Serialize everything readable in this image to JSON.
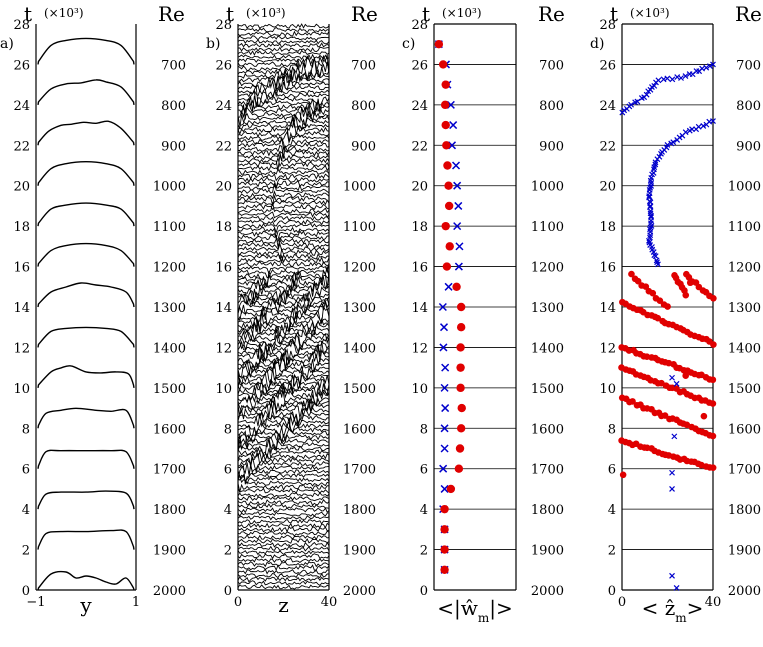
{
  "chart_data": [
    {
      "type": "line",
      "panel_label": "a)",
      "time_label": "t",
      "time_multiplier": "(×10³)",
      "re_label": "Re",
      "xlabel": "y",
      "x_ticks": [
        "−1",
        "1"
      ],
      "xlim": [
        -1,
        1
      ],
      "ylim": [
        0,
        28
      ],
      "y_ticks": [
        0,
        2,
        4,
        6,
        8,
        10,
        12,
        14,
        16,
        18,
        20,
        22,
        24,
        26,
        28
      ],
      "note": "",
      "series": [
        {
          "t": 0,
          "y": [
            -0.95,
            -0.7,
            -0.4,
            -0.2,
            0.0,
            0.2,
            0.4,
            0.6,
            0.8,
            0.95
          ],
          "v": [
            0.1,
            0.8,
            0.9,
            0.6,
            0.7,
            0.6,
            0.4,
            0.3,
            0.6,
            0.1
          ]
        },
        {
          "t": 2,
          "y": [
            -0.95,
            -0.8,
            -0.5,
            0.0,
            0.5,
            0.8,
            0.95
          ],
          "v": [
            0.15,
            0.8,
            0.9,
            0.9,
            0.95,
            0.9,
            0.15
          ]
        },
        {
          "t": 4,
          "y": [
            -0.95,
            -0.8,
            -0.5,
            0.0,
            0.4,
            0.8,
            0.95
          ],
          "v": [
            0.15,
            0.75,
            0.85,
            0.85,
            0.9,
            0.8,
            0.15
          ]
        },
        {
          "t": 6,
          "y": [
            -0.95,
            -0.8,
            -0.5,
            0.0,
            0.5,
            0.8,
            0.95
          ],
          "v": [
            0.15,
            0.85,
            0.9,
            0.9,
            0.9,
            0.85,
            0.15
          ]
        },
        {
          "t": 8,
          "y": [
            -0.95,
            -0.8,
            -0.5,
            -0.2,
            0.2,
            0.5,
            0.8,
            0.95
          ],
          "v": [
            0.15,
            0.75,
            0.9,
            1.0,
            0.9,
            0.85,
            0.9,
            0.15
          ]
        },
        {
          "t": 10,
          "y": [
            -0.95,
            -0.7,
            -0.5,
            -0.3,
            0.0,
            0.3,
            0.6,
            0.85,
            0.95
          ],
          "v": [
            0.15,
            0.8,
            1.0,
            1.1,
            0.8,
            0.75,
            0.8,
            0.7,
            0.15
          ]
        },
        {
          "t": 12,
          "y": [
            -0.95,
            -0.7,
            -0.4,
            0.0,
            0.4,
            0.7,
            0.95
          ],
          "v": [
            0.15,
            0.8,
            0.95,
            1.0,
            0.95,
            0.8,
            0.15
          ]
        },
        {
          "t": 14,
          "y": [
            -0.95,
            -0.7,
            -0.4,
            -0.1,
            0.2,
            0.5,
            0.8,
            0.95
          ],
          "v": [
            0.15,
            0.75,
            1.0,
            1.2,
            1.1,
            1.0,
            0.75,
            0.15
          ]
        },
        {
          "t": 16,
          "y": [
            -0.95,
            -0.7,
            -0.4,
            0.0,
            0.4,
            0.7,
            0.95
          ],
          "v": [
            0.15,
            0.8,
            1.05,
            1.15,
            1.05,
            0.8,
            0.15
          ]
        },
        {
          "t": 18,
          "y": [
            -0.95,
            -0.7,
            -0.4,
            0.0,
            0.4,
            0.7,
            0.95
          ],
          "v": [
            0.15,
            0.85,
            1.05,
            1.15,
            1.05,
            0.85,
            0.15
          ]
        },
        {
          "t": 20,
          "y": [
            -0.95,
            -0.7,
            -0.4,
            0.0,
            0.4,
            0.7,
            0.95
          ],
          "v": [
            0.15,
            0.85,
            1.1,
            1.2,
            1.1,
            0.85,
            0.15
          ]
        },
        {
          "t": 22,
          "y": [
            -0.95,
            -0.75,
            -0.5,
            -0.3,
            -0.05,
            0.2,
            0.45,
            0.7,
            0.95
          ],
          "v": [
            0.15,
            0.7,
            1.0,
            1.05,
            1.15,
            1.1,
            1.2,
            0.85,
            0.15
          ]
        },
        {
          "t": 24,
          "y": [
            -0.95,
            -0.7,
            -0.4,
            -0.1,
            0.2,
            0.4,
            0.7,
            0.95
          ],
          "v": [
            0.15,
            0.8,
            1.05,
            1.1,
            1.25,
            1.15,
            0.9,
            0.15
          ]
        },
        {
          "t": 26,
          "y": [
            -0.95,
            -0.7,
            -0.4,
            0.0,
            0.4,
            0.7,
            0.95
          ],
          "v": [
            0.15,
            0.95,
            1.2,
            1.3,
            1.2,
            0.95,
            0.15
          ]
        }
      ]
    },
    {
      "type": "heatmap",
      "panel_label": "b)",
      "time_label": "t",
      "time_multiplier": "(×10³)",
      "re_label": "Re",
      "xlabel": "z",
      "x_ticks": [
        "0",
        "40"
      ],
      "xlim": [
        0,
        40
      ],
      "ylim": [
        0,
        28
      ],
      "y_ticks": [
        0,
        2,
        4,
        6,
        8,
        10,
        12,
        14,
        16,
        18,
        20,
        22,
        24,
        26,
        28
      ],
      "stripes": [
        {
          "points": [
            [
              0,
              5.4
            ],
            [
              40,
              10.3
            ]
          ]
        },
        {
          "points": [
            [
              0,
              7.0
            ],
            [
              40,
              12.3
            ]
          ]
        },
        {
          "points": [
            [
              0,
              8.6
            ],
            [
              40,
              14.0
            ]
          ]
        },
        {
          "points": [
            [
              0,
              10.3
            ],
            [
              40,
              15.6
            ]
          ]
        },
        {
          "points": [
            [
              0,
              12.0
            ],
            [
              28,
              15.6
            ]
          ]
        },
        {
          "points": [
            [
              0,
              13.8
            ],
            [
              14,
              15.6
            ]
          ]
        },
        {
          "points": [
            [
              20,
              16.0
            ],
            [
              15,
              19.0
            ],
            [
              18,
              21.5
            ],
            [
              26,
              23.2
            ],
            [
              38,
              24.1
            ]
          ]
        },
        {
          "points": [
            [
              0,
              23.0
            ],
            [
              8,
              24.4
            ],
            [
              20,
              25.2
            ],
            [
              30,
              25.8
            ],
            [
              40,
              26.0
            ]
          ]
        }
      ]
    },
    {
      "type": "scatter",
      "panel_label": "c)",
      "time_label": "t",
      "time_multiplier": "(×10³)",
      "re_label": "Re",
      "xlabel": "<|ŵ_m|>",
      "xlim": [
        0,
        1
      ],
      "ylim": [
        0,
        28
      ],
      "y_ticks": [
        0,
        2,
        4,
        6,
        8,
        10,
        12,
        14,
        16,
        18,
        20,
        22,
        24,
        26,
        28
      ],
      "series": [
        {
          "marker": "dot",
          "color": "#e00000",
          "t": [
            1,
            2,
            3,
            4,
            5,
            6,
            7,
            8,
            9,
            10,
            11,
            12,
            13,
            14,
            15,
            16,
            17,
            18,
            19,
            20,
            21,
            22,
            23,
            24,
            25,
            26,
            27
          ],
          "v": [
            0.3,
            0.3,
            0.3,
            0.3,
            0.52,
            0.8,
            0.84,
            0.88,
            0.9,
            0.86,
            0.86,
            0.86,
            0.88,
            0.88,
            0.72,
            0.38,
            0.48,
            0.34,
            0.46,
            0.44,
            0.4,
            0.36,
            0.34,
            0.32,
            0.34,
            0.25,
            0.1
          ]
        },
        {
          "marker": "x",
          "color": "#0000cc",
          "t": [
            1,
            2,
            3,
            4,
            5,
            6,
            7,
            8,
            9,
            10,
            11,
            12,
            13,
            14,
            15,
            16,
            17,
            18,
            19,
            20,
            21,
            22,
            23,
            24,
            25,
            26,
            27
          ],
          "v": [
            0.3,
            0.3,
            0.3,
            0.25,
            0.3,
            0.25,
            0.3,
            0.3,
            0.32,
            0.3,
            0.32,
            0.26,
            0.28,
            0.24,
            0.44,
            0.8,
            0.82,
            0.74,
            0.78,
            0.74,
            0.7,
            0.56,
            0.6,
            0.52,
            0.4,
            0.35,
            0.1
          ]
        }
      ]
    },
    {
      "type": "scatter",
      "panel_label": "d)",
      "time_label": "t",
      "time_multiplier": "(×10³)",
      "re_label": "Re",
      "xlabel": "<ẑ_m>",
      "x_ticks": [
        "0",
        "40"
      ],
      "xlim": [
        0,
        40
      ],
      "ylim": [
        0,
        28
      ],
      "y_ticks": [
        0,
        2,
        4,
        6,
        8,
        10,
        12,
        14,
        16,
        18,
        20,
        22,
        24,
        26,
        28
      ],
      "red_tracks": [
        {
          "t0": 7.4,
          "z0": 0,
          "t1": 6.0,
          "z1": 40
        },
        {
          "t0": 9.5,
          "z0": 0,
          "t1": 7.6,
          "z1": 40
        },
        {
          "t0": 11.0,
          "z0": 0,
          "t1": 9.2,
          "z1": 40
        },
        {
          "t0": 12.0,
          "z0": 0,
          "t1": 10.4,
          "z1": 40
        },
        {
          "t0": 14.2,
          "z0": 0,
          "t1": 12.2,
          "z1": 40
        },
        {
          "t0": 15.6,
          "z0": 4,
          "t1": 14.0,
          "z1": 20
        },
        {
          "t0": 15.6,
          "z0": 23,
          "t1": 14.6,
          "z1": 28
        },
        {
          "t0": 15.6,
          "z0": 28,
          "t1": 14.4,
          "z1": 40
        }
      ],
      "red_isolated": [
        {
          "z": 0.5,
          "t": 5.7
        },
        {
          "z": 36,
          "t": 8.6
        },
        {
          "z": 28,
          "t": 10.6
        },
        {
          "z": 30,
          "t": 15.2
        }
      ],
      "blue_path": [
        [
          16,
          16.1
        ],
        [
          12,
          17.2
        ],
        [
          13,
          18.4
        ],
        [
          12,
          19.4
        ],
        [
          13,
          20.4
        ],
        [
          15,
          21.2
        ],
        [
          20,
          22.0
        ],
        [
          28,
          22.6
        ],
        [
          40,
          23.2
        ]
      ],
      "blue_top": [
        [
          0,
          23.6
        ],
        [
          4,
          24.0
        ],
        [
          10,
          24.4
        ],
        [
          16,
          25.2
        ],
        [
          28,
          25.4
        ],
        [
          40,
          26.0
        ]
      ],
      "blue_isolated": [
        {
          "z": 22,
          "t": 0.7
        },
        {
          "z": 24,
          "t": 0.1
        },
        {
          "z": 22,
          "t": 5.0
        },
        {
          "z": 22,
          "t": 5.8
        },
        {
          "z": 23,
          "t": 7.6
        },
        {
          "z": 22,
          "t": 10.5
        },
        {
          "z": 24,
          "t": 10.2
        }
      ]
    }
  ],
  "re_levels": [
    2000,
    1900,
    1800,
    1700,
    1600,
    1500,
    1400,
    1300,
    1200,
    1100,
    1000,
    900,
    800,
    700
  ],
  "colors": {
    "red": "#e00000",
    "blue": "#0000cc",
    "axis": "#000000"
  }
}
